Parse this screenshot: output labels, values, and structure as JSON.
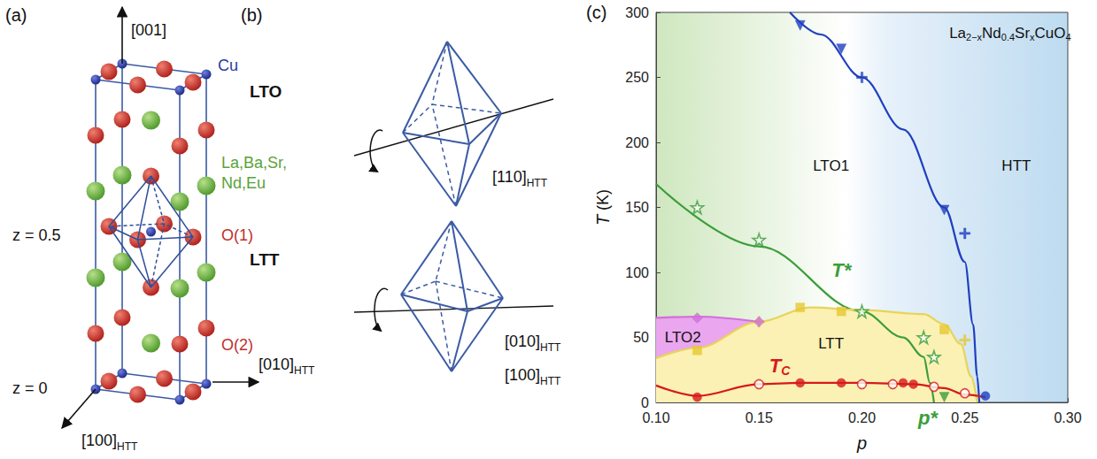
{
  "panel_a": {
    "letter": "(a)",
    "axes": {
      "c": "[001]",
      "b": [
        {
          "t": "[010]"
        },
        {
          "t": "HTT",
          "sub": true
        }
      ],
      "a": [
        {
          "t": "[100]"
        },
        {
          "t": "HTT",
          "sub": true
        }
      ]
    },
    "atoms": {
      "cu": "Cu",
      "cation": [
        "La,Ba,Sr,",
        "Nd,Eu"
      ],
      "o1": "O(1)",
      "o2": "O(2)"
    },
    "planes": [
      "z = 0.5",
      "z = 0"
    ]
  },
  "panel_b": {
    "letter": "(b)",
    "lto": {
      "name": "LTO",
      "axis": [
        {
          "t": "[110]"
        },
        {
          "t": "HTT",
          "sub": true
        }
      ]
    },
    "ltt": {
      "name": "LTT",
      "axes": [
        [
          {
            "t": "[010]"
          },
          {
            "t": "HTT",
            "sub": true
          }
        ],
        [
          {
            "t": "[100]"
          },
          {
            "t": "HTT",
            "sub": true
          }
        ]
      ]
    }
  },
  "panel_c": {
    "letter": "(c)"
  },
  "chart_data": {
    "type": "line",
    "title": [
      {
        "t": "La"
      },
      {
        "t": "2−x",
        "sub": true
      },
      {
        "t": "Nd"
      },
      {
        "t": "0.4",
        "sub": true
      },
      {
        "t": "Sr"
      },
      {
        "t": "x",
        "sub": true
      },
      {
        "t": "CuO"
      },
      {
        "t": "4",
        "sub": true
      }
    ],
    "xlabel": "p",
    "ylabel": "T (K)",
    "xlim": [
      0.1,
      0.3
    ],
    "xticks": [
      {
        "value": 0.1,
        "label": "0.10"
      },
      0.15,
      {
        "value": 0.2,
        "label": "0.20"
      },
      0.25,
      {
        "value": 0.3,
        "label": "0.30"
      }
    ],
    "ylim": [
      0,
      300
    ],
    "yticks": [
      0,
      50,
      100,
      150,
      200,
      250,
      300
    ],
    "grid": false,
    "series": [
      {
        "type": "area",
        "color": "#eaa6ee",
        "x": [
          0.1,
          0.12,
          0.15
        ],
        "values": [
          65,
          66,
          62
        ]
      },
      {
        "type": "area",
        "color": "#fbf1b4",
        "x": [
          0.1,
          0.12,
          0.15,
          0.175,
          0.2,
          0.23,
          0.24,
          0.248,
          0.253,
          0.256
        ],
        "values": [
          34,
          42,
          62,
          73,
          71,
          68,
          60,
          45,
          20,
          0
        ]
      },
      {
        "type": "line",
        "color": "#1f3fbf",
        "x": [
          0.165,
          0.18,
          0.2,
          0.22,
          0.24,
          0.25,
          0.254,
          0.256,
          0.257
        ],
        "values": [
          300,
          283,
          250,
          210,
          150,
          108,
          60,
          20,
          0
        ]
      },
      {
        "type": "line",
        "color": "#3a9e3a",
        "x": [
          0.1,
          0.15,
          0.2,
          0.22,
          0.23,
          0.233,
          0.235
        ],
        "values": [
          168,
          120,
          70,
          50,
          35,
          15,
          0
        ]
      },
      {
        "type": "line",
        "color": "#e8d35a",
        "x": [
          0.1,
          0.12,
          0.15,
          0.175,
          0.2,
          0.23,
          0.24,
          0.248,
          0.253,
          0.256
        ],
        "values": [
          34,
          42,
          62,
          73,
          71,
          68,
          60,
          45,
          20,
          0
        ]
      },
      {
        "type": "line",
        "color": "#d070d8",
        "x": [
          0.1,
          0.12,
          0.15
        ],
        "values": [
          65,
          66,
          62
        ]
      },
      {
        "type": "line",
        "color": "#d7191c",
        "x": [
          0.1,
          0.12,
          0.15,
          0.17,
          0.2,
          0.225,
          0.24,
          0.25,
          0.26
        ],
        "values": [
          13,
          5,
          14,
          15,
          15,
          14,
          11,
          6,
          4
        ]
      },
      {
        "type": "scatter",
        "color": "#1f3fbf",
        "marker": "triangle_down",
        "x": [
          0.17,
          0.19,
          0.24
        ],
        "values": [
          290,
          272,
          148
        ]
      },
      {
        "type": "scatter",
        "color": "#1f3fbf",
        "marker": "plus",
        "x": [
          0.2,
          0.25
        ],
        "values": [
          250,
          130
        ]
      },
      {
        "type": "scatter",
        "color": "#1f3fbf",
        "marker": "circle",
        "x": [
          0.26
        ],
        "values": [
          5
        ]
      },
      {
        "type": "scatter",
        "color": "#3a9e3a",
        "marker": "star_open",
        "x": [
          0.12,
          0.15,
          0.2,
          0.23,
          0.235
        ],
        "values": [
          150,
          125,
          70,
          50,
          35
        ]
      },
      {
        "type": "scatter",
        "color": "#3a9e3a",
        "marker": "triangle_down",
        "x": [
          0.24
        ],
        "values": [
          4
        ]
      },
      {
        "type": "scatter",
        "color": "#e6c832",
        "marker": "square",
        "x": [
          0.12,
          0.17,
          0.19,
          0.24
        ],
        "values": [
          40,
          73,
          70,
          56
        ]
      },
      {
        "type": "scatter",
        "color": "#e6c832",
        "marker": "plus",
        "x": [
          0.15,
          0.25
        ],
        "values": [
          62,
          48
        ]
      },
      {
        "type": "scatter",
        "color": "#d070d8",
        "marker": "diamond",
        "x": [
          0.12,
          0.15
        ],
        "values": [
          65,
          62
        ]
      },
      {
        "type": "scatter",
        "color": "#d7191c",
        "marker": "circle",
        "x": [
          0.12,
          0.17,
          0.19,
          0.22,
          0.225
        ],
        "values": [
          4,
          15,
          15,
          15,
          14
        ]
      },
      {
        "type": "scatter",
        "color": "#d7191c",
        "marker": "circle_open",
        "x": [
          0.15,
          0.2,
          0.215,
          0.235,
          0.25
        ],
        "values": [
          14,
          14,
          14,
          12,
          7
        ]
      }
    ],
    "annotations": [
      {
        "text": "LTO1",
        "x": 0.185,
        "y": 182
      },
      {
        "text": "HTT",
        "x": 0.275,
        "y": 182
      },
      {
        "text": "LTT",
        "x": 0.185,
        "y": 45
      },
      {
        "text": "LTO2",
        "x": 0.113,
        "y": 50
      },
      {
        "text": "T*",
        "x": 0.19,
        "y": 102,
        "color": "#3a9e3a"
      },
      {
        "parts": [
          {
            "t": "T"
          },
          {
            "t": "C",
            "sub": true
          }
        ],
        "x": 0.16,
        "y": 28,
        "color": "#d7191c"
      },
      {
        "text": "p*",
        "x": 0.232,
        "y": -12,
        "color": "#3a9e3a"
      }
    ]
  }
}
